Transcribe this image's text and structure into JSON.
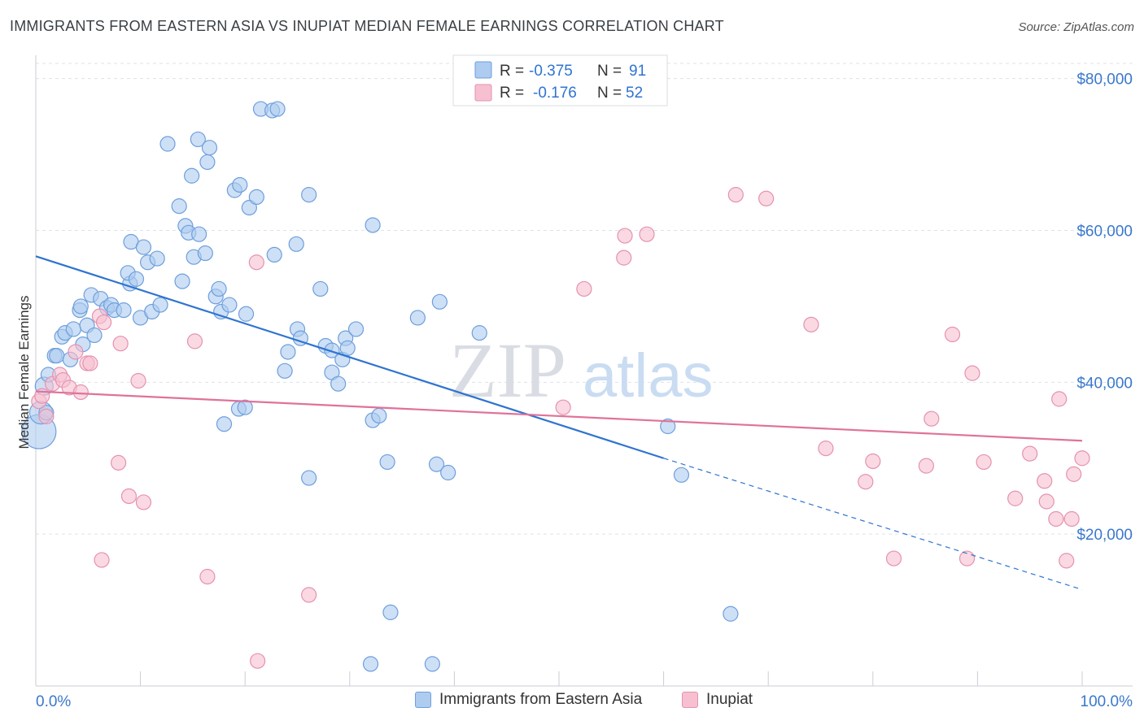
{
  "title": "IMMIGRANTS FROM EASTERN ASIA VS INUPIAT MEDIAN FEMALE EARNINGS CORRELATION CHART",
  "source": "Source: ZipAtlas.com",
  "watermark": {
    "zip": "ZIP",
    "atlas": "atlas"
  },
  "colors": {
    "blue_fill": "#aecbf0",
    "blue_stroke": "#6e9fdc",
    "blue_line": "#2f74d0",
    "pink_fill": "#f6c0d1",
    "pink_stroke": "#e592b0",
    "pink_line": "#e0729a",
    "axis_label": "#3a78cc",
    "grid": "#dde3ea"
  },
  "legend": {
    "rows": [
      {
        "r_label": "R =",
        "r_value": "-0.375",
        "n_label": "N =",
        "n_value": "91"
      },
      {
        "r_label": "R =",
        "r_value": "-0.176",
        "n_label": "N =",
        "n_value": "52"
      }
    ]
  },
  "bottom_legend": {
    "series1": "Immigrants from Eastern Asia",
    "series2": "Inupiat"
  },
  "chart_data": {
    "type": "scatter",
    "title": "IMMIGRANTS FROM EASTERN ASIA VS INUPIAT MEDIAN FEMALE EARNINGS CORRELATION CHART",
    "xlabel": "",
    "ylabel": "Median Female Earnings",
    "xlim": [
      0,
      100
    ],
    "ylim": [
      0,
      82000
    ],
    "x_tick_labels": [
      "0.0%",
      "100.0%"
    ],
    "y_ticks": [
      20000,
      40000,
      60000,
      80000
    ],
    "y_tick_labels": [
      "$20,000",
      "$40,000",
      "$60,000",
      "$80,000"
    ],
    "grid": true,
    "legend_position": "top-center",
    "series": [
      {
        "name": "Immigrants from Eastern Asia",
        "trend": {
          "x": [
            0,
            60
          ],
          "y": [
            56600,
            30000
          ],
          "dashed_to_x": 100,
          "dashed_to_y": 12700
        },
        "points": [
          [
            0.3,
            33500
          ],
          [
            0.5,
            36000
          ],
          [
            0.8,
            39500
          ],
          [
            1.2,
            41000
          ],
          [
            1.8,
            43500
          ],
          [
            2.0,
            43500
          ],
          [
            2.5,
            46000
          ],
          [
            2.8,
            46500
          ],
          [
            3.3,
            43000
          ],
          [
            3.6,
            47000
          ],
          [
            4.2,
            49500
          ],
          [
            4.5,
            45000
          ],
          [
            4.9,
            47500
          ],
          [
            5.6,
            46200
          ],
          [
            5.3,
            51500
          ],
          [
            6.2,
            51000
          ],
          [
            6.8,
            49800
          ],
          [
            7.2,
            50200
          ],
          [
            7.5,
            49500
          ],
          [
            8.4,
            49500
          ],
          [
            9.0,
            53000
          ],
          [
            8.8,
            54400
          ],
          [
            9.1,
            58500
          ],
          [
            9.6,
            53600
          ],
          [
            10.0,
            48500
          ],
          [
            10.3,
            57800
          ],
          [
            10.7,
            55800
          ],
          [
            11.1,
            49300
          ],
          [
            11.6,
            56300
          ],
          [
            11.9,
            50200
          ],
          [
            12.6,
            71400
          ],
          [
            13.7,
            63200
          ],
          [
            14.0,
            53300
          ],
          [
            14.3,
            60600
          ],
          [
            14.6,
            59700
          ],
          [
            14.9,
            67200
          ],
          [
            15.1,
            56500
          ],
          [
            15.6,
            59500
          ],
          [
            15.5,
            72000
          ],
          [
            16.2,
            57000
          ],
          [
            16.4,
            69000
          ],
          [
            16.6,
            70900
          ],
          [
            17.2,
            51300
          ],
          [
            17.5,
            52300
          ],
          [
            17.7,
            49300
          ],
          [
            18.5,
            50200
          ],
          [
            19.0,
            65300
          ],
          [
            19.5,
            66000
          ],
          [
            20.4,
            63000
          ],
          [
            21.1,
            64400
          ],
          [
            20.1,
            49000
          ],
          [
            21.5,
            76000
          ],
          [
            22.6,
            75800
          ],
          [
            23.1,
            76000
          ],
          [
            22.8,
            56800
          ],
          [
            23.8,
            41500
          ],
          [
            24.1,
            44000
          ],
          [
            24.9,
            58200
          ],
          [
            25.0,
            47000
          ],
          [
            25.3,
            45800
          ],
          [
            26.1,
            64700
          ],
          [
            27.2,
            52300
          ],
          [
            27.7,
            44800
          ],
          [
            28.3,
            41300
          ],
          [
            28.3,
            44200
          ],
          [
            28.9,
            39800
          ],
          [
            29.3,
            43000
          ],
          [
            29.6,
            45800
          ],
          [
            29.8,
            44500
          ],
          [
            30.6,
            47000
          ],
          [
            32.2,
            60700
          ],
          [
            32.2,
            35000
          ],
          [
            32.8,
            35600
          ],
          [
            33.6,
            29500
          ],
          [
            36.5,
            48500
          ],
          [
            38.6,
            50600
          ],
          [
            38.3,
            29200
          ],
          [
            39.4,
            28100
          ],
          [
            42.4,
            46500
          ],
          [
            33.9,
            9700
          ],
          [
            32.0,
            2900
          ],
          [
            37.9,
            2900
          ],
          [
            60.4,
            34200
          ],
          [
            61.7,
            27800
          ],
          [
            66.4,
            9500
          ],
          [
            18.0,
            34500
          ],
          [
            19.4,
            36500
          ],
          [
            20.0,
            36700
          ],
          [
            26.1,
            27400
          ],
          [
            1.0,
            36000
          ],
          [
            4.3,
            50000
          ]
        ]
      },
      {
        "name": "Inupiat",
        "trend": {
          "x": [
            0,
            100
          ],
          "y": [
            38800,
            32300
          ]
        },
        "points": [
          [
            0.3,
            37500
          ],
          [
            1.0,
            35500
          ],
          [
            1.6,
            39800
          ],
          [
            2.3,
            41000
          ],
          [
            2.6,
            40300
          ],
          [
            3.2,
            39300
          ],
          [
            3.8,
            44000
          ],
          [
            4.3,
            38700
          ],
          [
            4.9,
            42500
          ],
          [
            5.2,
            42500
          ],
          [
            6.1,
            48700
          ],
          [
            6.5,
            47900
          ],
          [
            7.9,
            29400
          ],
          [
            8.1,
            45100
          ],
          [
            8.9,
            25000
          ],
          [
            9.8,
            40200
          ],
          [
            10.3,
            24200
          ],
          [
            6.3,
            16600
          ],
          [
            15.2,
            45400
          ],
          [
            16.4,
            14400
          ],
          [
            21.1,
            55800
          ],
          [
            21.2,
            3300
          ],
          [
            26.1,
            12000
          ],
          [
            50.4,
            36700
          ],
          [
            52.4,
            52300
          ],
          [
            56.2,
            56400
          ],
          [
            56.3,
            59300
          ],
          [
            58.4,
            59500
          ],
          [
            66.9,
            64700
          ],
          [
            69.8,
            64200
          ],
          [
            74.1,
            47600
          ],
          [
            75.5,
            31300
          ],
          [
            79.3,
            26900
          ],
          [
            80.0,
            29600
          ],
          [
            82.0,
            16800
          ],
          [
            85.1,
            29000
          ],
          [
            85.6,
            35200
          ],
          [
            87.6,
            46300
          ],
          [
            89.0,
            16800
          ],
          [
            89.5,
            41200
          ],
          [
            90.6,
            29500
          ],
          [
            93.6,
            24700
          ],
          [
            95.0,
            30600
          ],
          [
            96.4,
            27000
          ],
          [
            96.6,
            24300
          ],
          [
            97.8,
            37800
          ],
          [
            97.5,
            22000
          ],
          [
            98.5,
            16500
          ],
          [
            99.0,
            22000
          ],
          [
            100.0,
            30000
          ],
          [
            99.2,
            27900
          ],
          [
            0.6,
            38200
          ]
        ]
      }
    ]
  }
}
